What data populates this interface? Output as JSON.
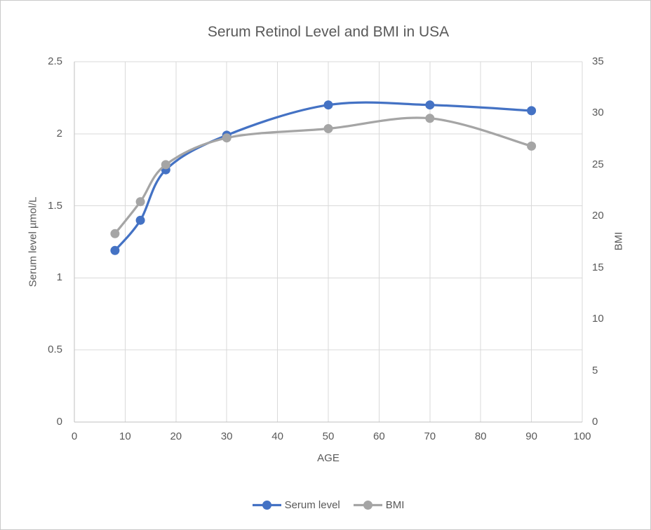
{
  "chart_data": {
    "type": "line",
    "title": "Serum Retinol Level and BMI in USA",
    "xlabel": "AGE",
    "ylabel_left": "Serum level µmol/L",
    "ylabel_right": "BMI",
    "x": [
      8,
      13,
      18,
      30,
      50,
      70,
      90
    ],
    "series": [
      {
        "name": "Serum level",
        "axis": "left",
        "color": "#4472C4",
        "values": [
          1.19,
          1.4,
          1.75,
          1.99,
          2.2,
          2.2,
          2.16
        ]
      },
      {
        "name": "BMI",
        "axis": "right",
        "color": "#A5A5A5",
        "values": [
          18.3,
          21.4,
          25,
          27.6,
          28.5,
          29.5,
          26.8
        ]
      }
    ],
    "xlim": [
      0,
      100
    ],
    "ylim_left": [
      0,
      2.5
    ],
    "ylim_right": [
      0,
      35
    ],
    "x_ticks": [
      0,
      10,
      20,
      30,
      40,
      50,
      60,
      70,
      80,
      90,
      100
    ],
    "y_left_ticks": [
      0,
      0.5,
      1,
      1.5,
      2,
      2.5
    ],
    "y_right_ticks": [
      0,
      5,
      10,
      15,
      20,
      25,
      30,
      35
    ],
    "grid": true,
    "smooth": true,
    "legend_position": "bottom"
  },
  "colors": {
    "serum_line": "#4472C4",
    "bmi_line": "#A5A5A5",
    "text": "#595959",
    "gridline": "#D9D9D9",
    "axis_line": "#BFBFBF",
    "background": "#FFFFFF",
    "frame_border": "#C9C9C9"
  }
}
